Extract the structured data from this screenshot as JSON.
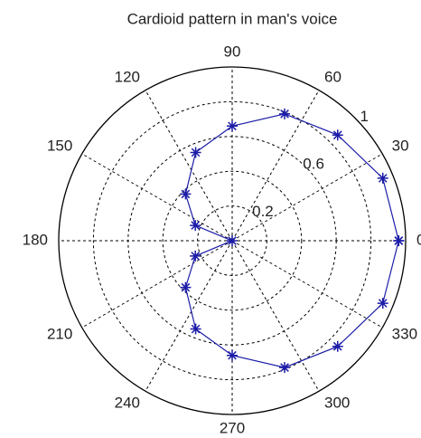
{
  "chart_data": {
    "type": "polar",
    "title": "Cardioid pattern in man's voice",
    "theta": [
      0,
      22.5,
      45,
      67.5,
      90,
      112.5,
      135,
      157.5,
      180,
      202.5,
      225,
      247.5,
      270,
      292.5,
      315,
      337.5,
      360
    ],
    "series": [
      {
        "color": "#1c1ca8",
        "marker": "*",
        "values": [
          0.96,
          0.94,
          0.86,
          0.79,
          0.66,
          0.55,
          0.38,
          0.23,
          0,
          0.23,
          0.38,
          0.55,
          0.66,
          0.79,
          0.86,
          0.94,
          0.96
        ]
      }
    ],
    "rlim": [
      0,
      1
    ],
    "rticks": [
      0.2,
      {
        "value": 0.4,
        "label": null
      },
      0.6,
      {
        "value": 0.8,
        "label": null
      },
      1
    ],
    "thetaticks": [
      0,
      30,
      60,
      90,
      120,
      150,
      180,
      210,
      240,
      270,
      300,
      330
    ],
    "grid": true
  }
}
